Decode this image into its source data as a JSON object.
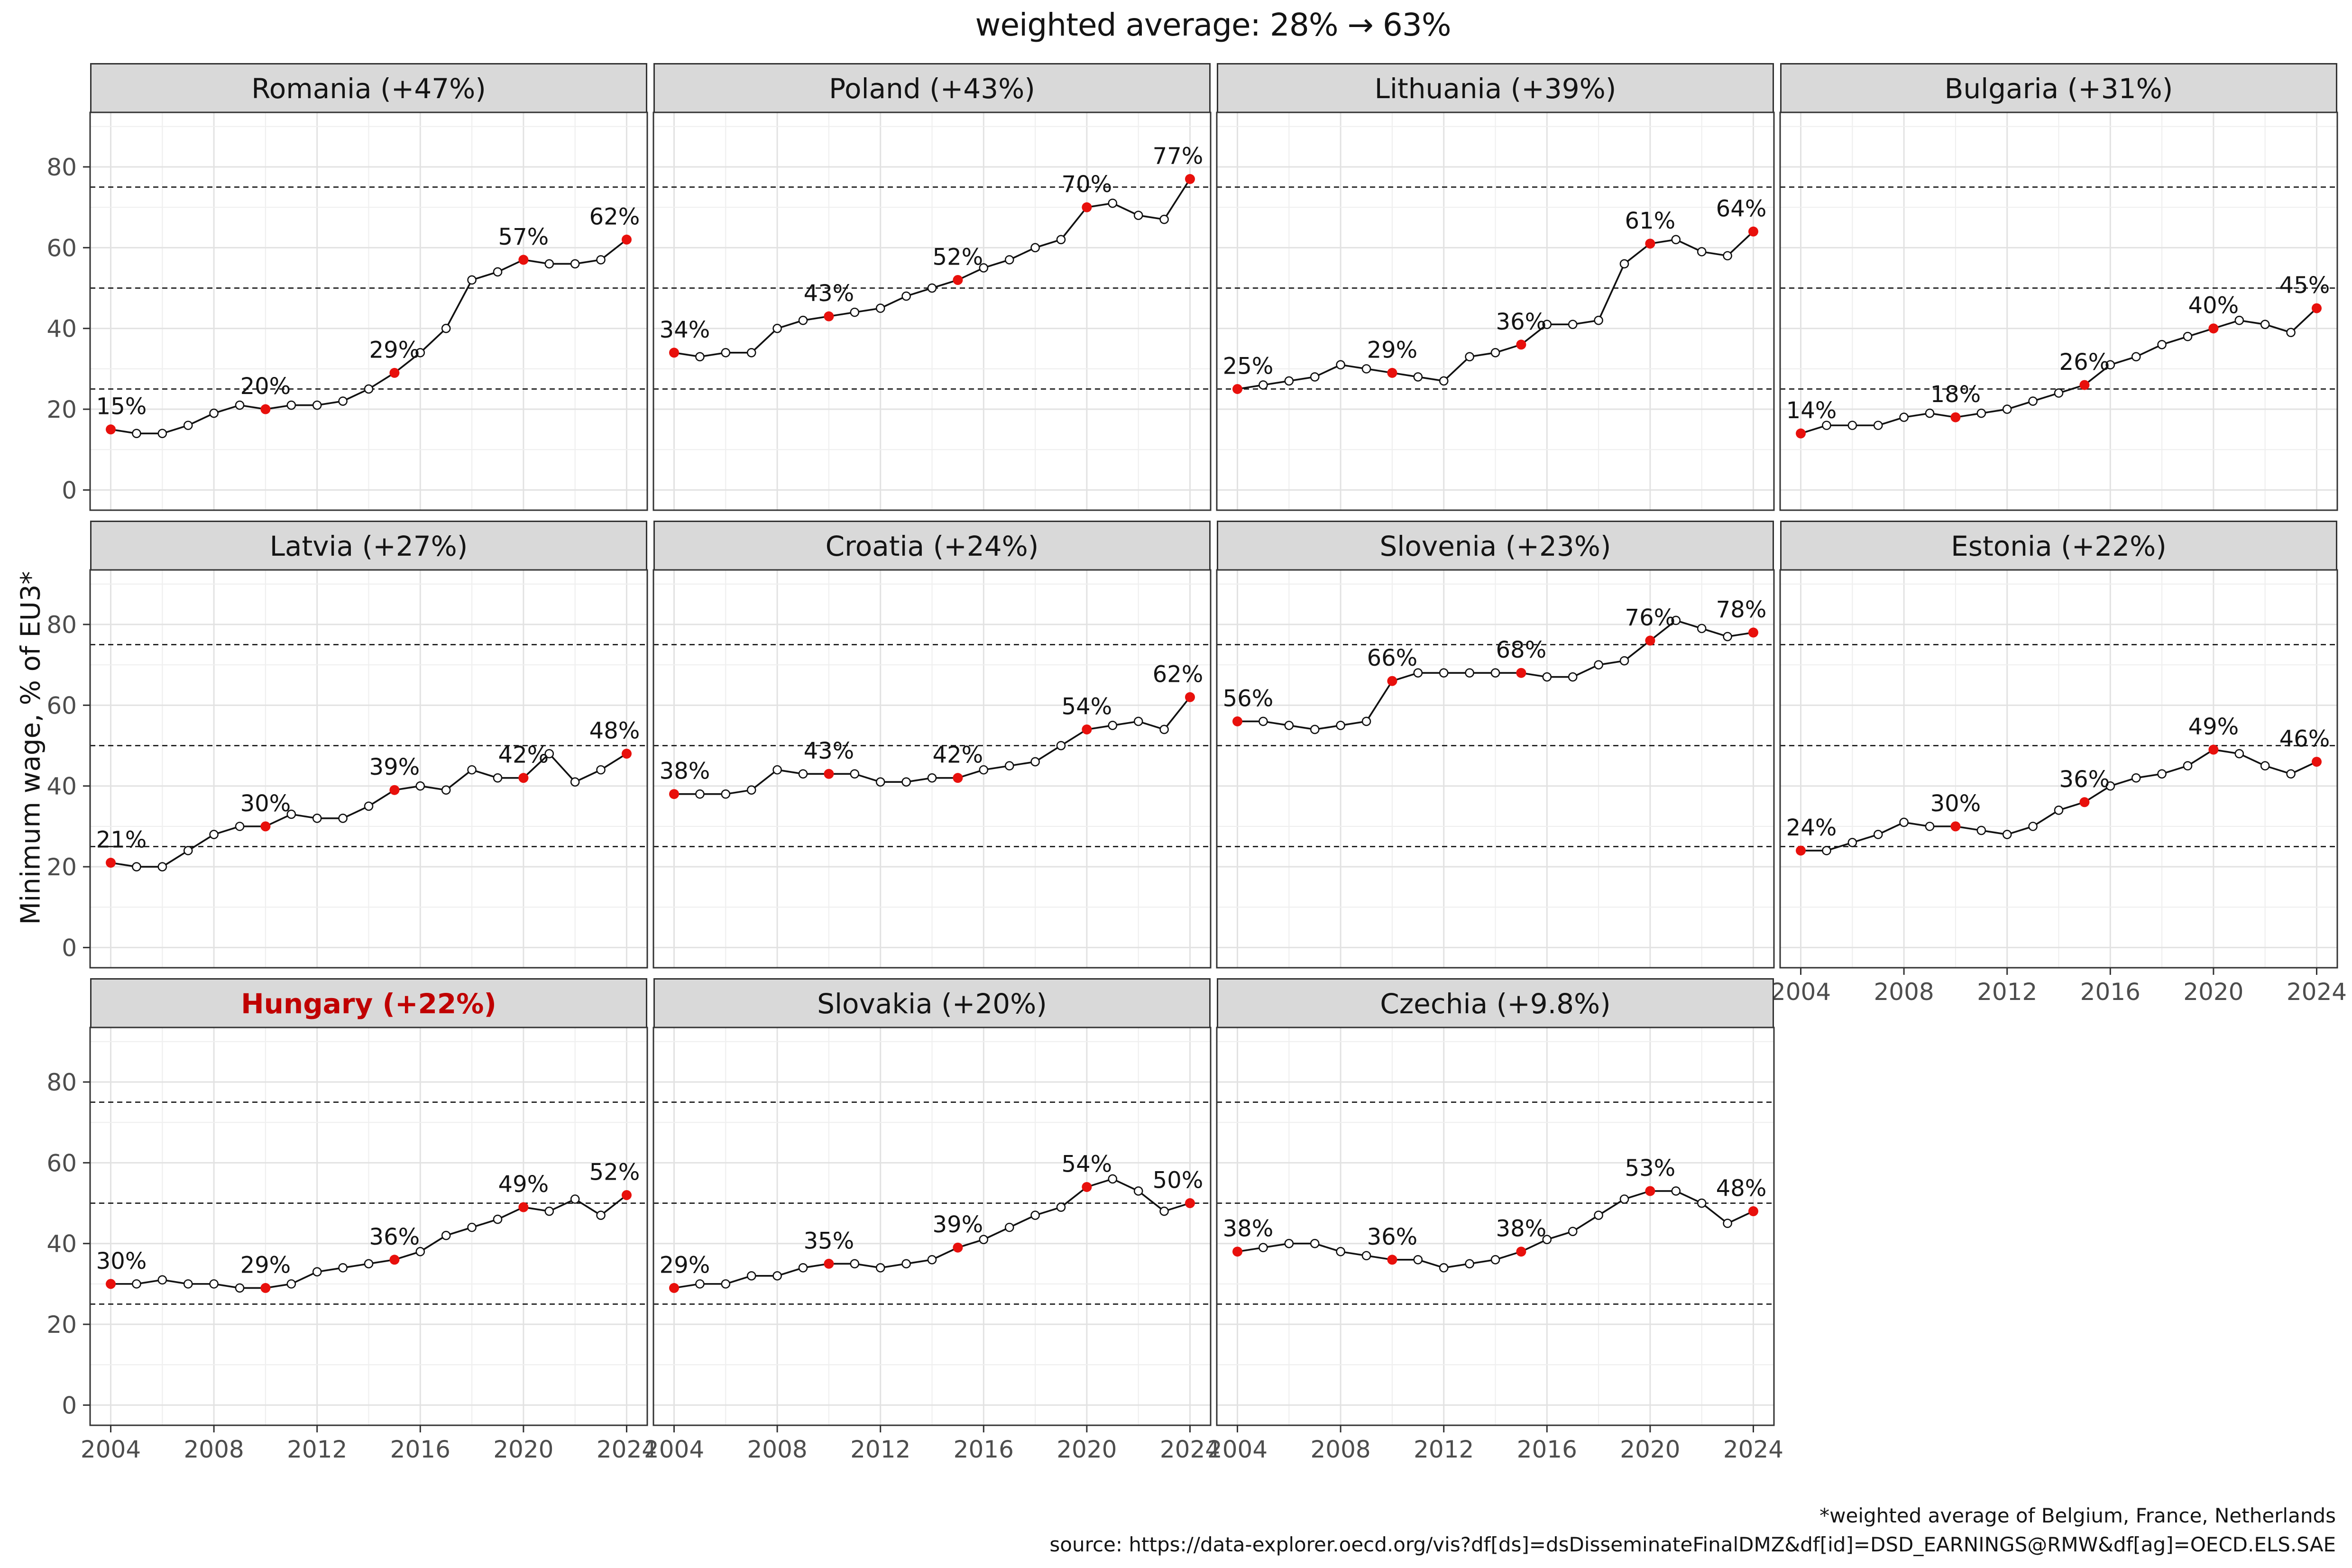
{
  "page": {
    "title": "weighted average: 28% → 63%",
    "footnote": "*weighted average of Belgium, France, Netherlands",
    "source": "source: https://data-explorer.oecd.org/vis?df[ds]=dsDisseminateFinalDMZ&df[id]=DSD_EARNINGS@RMW&df[ag]=OECD.ELS.SAE"
  },
  "chart_data": {
    "type": "line",
    "ylabel": "Minimum wage, % of EU3*",
    "x": [
      2004,
      2005,
      2006,
      2007,
      2008,
      2009,
      2010,
      2011,
      2012,
      2013,
      2014,
      2015,
      2016,
      2017,
      2018,
      2019,
      2020,
      2021,
      2022,
      2023,
      2024
    ],
    "x_ticks": [
      2004,
      2008,
      2012,
      2016,
      2020,
      2024
    ],
    "y_ticks": [
      0,
      20,
      40,
      60,
      80
    ],
    "dashed_reference_lines": [
      25,
      50,
      75
    ],
    "ylim": [
      0,
      93
    ],
    "grid": true,
    "highlight_years": [
      2004,
      2010,
      2015,
      2020,
      2024
    ],
    "colors": {
      "line": "#111111",
      "highlight_dot": "#e8100c",
      "emphasis_title": "#c00000",
      "header_bg": "#d9d9d9",
      "grid_major": "#e2e2e2",
      "grid_minor": "#efefef"
    },
    "panels": [
      {
        "title": "Romania (+47%)",
        "country": "Romania",
        "delta": "+47%",
        "emphasis": false,
        "values": [
          15,
          14,
          14,
          16,
          19,
          21,
          20,
          21,
          21,
          22,
          25,
          29,
          34,
          40,
          52,
          54,
          57,
          56,
          56,
          57,
          62
        ]
      },
      {
        "title": "Poland (+43%)",
        "country": "Poland",
        "delta": "+43%",
        "emphasis": false,
        "values": [
          34,
          33,
          34,
          34,
          40,
          42,
          43,
          44,
          45,
          48,
          50,
          52,
          55,
          57,
          60,
          62,
          70,
          71,
          68,
          67,
          77
        ]
      },
      {
        "title": "Lithuania (+39%)",
        "country": "Lithuania",
        "delta": "+39%",
        "emphasis": false,
        "values": [
          25,
          26,
          27,
          28,
          31,
          30,
          29,
          28,
          27,
          33,
          34,
          36,
          41,
          41,
          42,
          56,
          61,
          62,
          59,
          58,
          64
        ]
      },
      {
        "title": "Bulgaria (+31%)",
        "country": "Bulgaria",
        "delta": "+31%",
        "emphasis": false,
        "values": [
          14,
          16,
          16,
          16,
          18,
          19,
          18,
          19,
          20,
          22,
          24,
          26,
          31,
          33,
          36,
          38,
          40,
          42,
          41,
          39,
          45
        ]
      },
      {
        "title": "Latvia (+27%)",
        "country": "Latvia",
        "delta": "+27%",
        "emphasis": false,
        "values": [
          21,
          20,
          20,
          24,
          28,
          30,
          30,
          33,
          32,
          32,
          35,
          39,
          40,
          39,
          44,
          42,
          42,
          48,
          41,
          44,
          48
        ]
      },
      {
        "title": "Croatia (+24%)",
        "country": "Croatia",
        "delta": "+24%",
        "emphasis": false,
        "values": [
          38,
          38,
          38,
          39,
          44,
          43,
          43,
          43,
          41,
          41,
          42,
          42,
          44,
          45,
          46,
          50,
          54,
          55,
          56,
          54,
          62
        ]
      },
      {
        "title": "Slovenia (+23%)",
        "country": "Slovenia",
        "delta": "+23%",
        "emphasis": false,
        "values": [
          56,
          56,
          55,
          54,
          55,
          56,
          66,
          68,
          68,
          68,
          68,
          68,
          67,
          67,
          70,
          71,
          76,
          81,
          79,
          77,
          78
        ]
      },
      {
        "title": "Estonia (+22%)",
        "country": "Estonia",
        "delta": "+22%",
        "emphasis": false,
        "values": [
          24,
          24,
          26,
          28,
          31,
          30,
          30,
          29,
          28,
          30,
          34,
          36,
          40,
          42,
          43,
          45,
          49,
          48,
          45,
          43,
          46
        ]
      },
      {
        "title": "Hungary (+22%)",
        "country": "Hungary",
        "delta": "+22%",
        "emphasis": true,
        "values": [
          30,
          30,
          31,
          30,
          30,
          29,
          29,
          30,
          33,
          34,
          35,
          36,
          38,
          42,
          44,
          46,
          49,
          48,
          51,
          47,
          52
        ]
      },
      {
        "title": "Slovakia (+20%)",
        "country": "Slovakia",
        "delta": "+20%",
        "emphasis": false,
        "values": [
          29,
          30,
          30,
          32,
          32,
          34,
          35,
          35,
          34,
          35,
          36,
          39,
          41,
          44,
          47,
          49,
          54,
          56,
          53,
          48,
          50
        ]
      },
      {
        "title": "Czechia (+9.8%)",
        "country": "Czechia",
        "delta": "+9.8%",
        "emphasis": false,
        "values": [
          38,
          39,
          40,
          40,
          38,
          37,
          36,
          36,
          34,
          35,
          36,
          38,
          41,
          43,
          47,
          51,
          53,
          53,
          50,
          45,
          48
        ]
      }
    ]
  }
}
